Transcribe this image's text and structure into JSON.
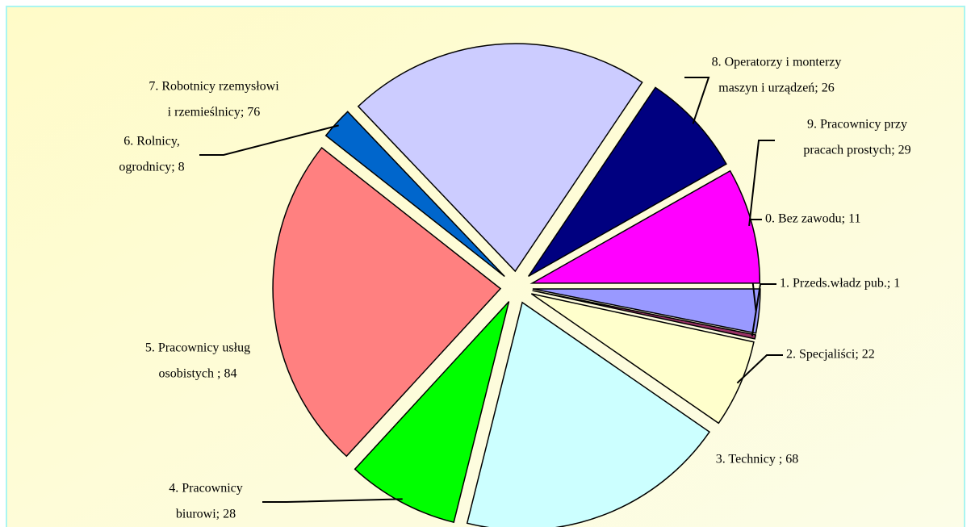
{
  "chart_data": {
    "type": "pie",
    "values": [
      11,
      1,
      22,
      68,
      28,
      84,
      8,
      76,
      26,
      29
    ],
    "value_labels": [
      [
        "0. Bez zawodu; 11"
      ],
      [
        "1. Przeds.władz pub.; 1"
      ],
      [
        "2. Specjaliści; 22"
      ],
      [
        "3. Technicy ; 68"
      ],
      [
        "4. Pracownicy",
        "biurowi; 28"
      ],
      [
        "5. Pracownicy usług",
        "osobistych ; 84"
      ],
      [
        "6. Rolnicy,",
        "ogrodnicy; 8"
      ],
      [
        "7. Robotnicy rzemysłowi",
        "i rzemieślnicy; 76"
      ],
      [
        "8. Operatorzy i monterzy",
        "maszyn i urządzeń; 26"
      ],
      [
        "9. Pracownicy przy",
        "pracach prostych; 29"
      ]
    ],
    "colors": [
      "#9999ff",
      "#993366",
      "#ffffcc",
      "#ccffff",
      "#00ff00",
      "#ff8080",
      "#0066cc",
      "#ccccff",
      "#000080",
      "#ff00ff"
    ]
  }
}
